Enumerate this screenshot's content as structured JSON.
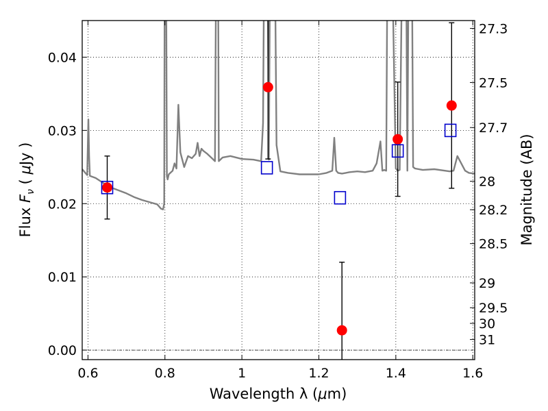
{
  "chart_data": {
    "type": "scatter",
    "xlabel": "Wavelength  λ (μm)",
    "ylabel_left": "Flux  Fν  ( μJy )",
    "ylabel_right": "Magnitude (AB)",
    "xlim": [
      0.585,
      1.605
    ],
    "ylim": [
      -0.0013,
      0.045
    ],
    "x_ticks": [
      0.6,
      0.8,
      1.0,
      1.2,
      1.4,
      1.6
    ],
    "x_tick_labels": [
      "0.6",
      "0.8",
      "1",
      "1.2",
      "1.4",
      "1.6"
    ],
    "y_ticks": [
      0.0,
      0.01,
      0.02,
      0.03,
      0.04
    ],
    "y_tick_labels": [
      "0.00",
      "0.01",
      "0.02",
      "0.03",
      "0.04"
    ],
    "right_ticks": [
      {
        "label": "27.3",
        "flux": 0.04393
      },
      {
        "label": "27.5",
        "flux": 0.03654
      },
      {
        "label": "27.7",
        "flux": 0.03039
      },
      {
        "label": "28",
        "flux": 0.02305
      },
      {
        "label": "28.2",
        "flux": 0.01917
      },
      {
        "label": "28.5",
        "flux": 0.01454
      },
      {
        "label": "29",
        "flux": 0.00918
      },
      {
        "label": "29.5",
        "flux": 0.00579
      },
      {
        "label": "30",
        "flux": 0.00365
      },
      {
        "label": "31",
        "flux": 0.00145
      }
    ],
    "grid": true,
    "series": [
      {
        "kind": "line",
        "color": "#808080",
        "x": [
          0.585,
          0.598,
          0.601,
          0.603,
          0.605,
          0.62,
          0.64,
          0.66,
          0.68,
          0.7,
          0.72,
          0.74,
          0.76,
          0.78,
          0.79,
          0.795,
          0.798,
          0.8,
          0.801,
          0.802,
          0.805,
          0.807,
          0.81,
          0.82,
          0.825,
          0.83,
          0.835,
          0.84,
          0.85,
          0.86,
          0.87,
          0.88,
          0.885,
          0.89,
          0.895,
          0.9,
          0.91,
          0.92,
          0.93,
          0.935,
          0.937,
          0.94,
          0.95,
          0.97,
          1.0,
          1.03,
          1.05,
          1.055,
          1.06,
          1.065,
          1.07,
          1.075,
          1.08,
          1.083,
          1.09,
          1.1,
          1.12,
          1.15,
          1.18,
          1.2,
          1.22,
          1.235,
          1.24,
          1.245,
          1.25,
          1.26,
          1.27,
          1.28,
          1.3,
          1.32,
          1.34,
          1.35,
          1.36,
          1.365,
          1.37,
          1.375,
          1.38,
          1.385,
          1.4,
          1.405,
          1.41,
          1.42,
          1.425,
          1.43,
          1.435,
          1.44,
          1.445,
          1.45,
          1.47,
          1.5,
          1.54,
          1.55,
          1.56,
          1.58,
          1.59,
          1.605
        ],
        "y": [
          0.0247,
          0.0239,
          0.0315,
          0.0265,
          0.0238,
          0.0235,
          0.0228,
          0.0222,
          0.0218,
          0.0214,
          0.0209,
          0.0205,
          0.0202,
          0.0199,
          0.0193,
          0.0192,
          0.02,
          0.07,
          0.07,
          0.07,
          0.0238,
          0.0233,
          0.024,
          0.0245,
          0.0255,
          0.0248,
          0.0335,
          0.027,
          0.025,
          0.0265,
          0.0262,
          0.0268,
          0.0283,
          0.0265,
          0.0275,
          0.0272,
          0.0268,
          0.0263,
          0.0258,
          0.07,
          0.07,
          0.0258,
          0.0263,
          0.0265,
          0.0261,
          0.026,
          0.0258,
          0.031,
          0.07,
          0.07,
          0.026,
          0.07,
          0.07,
          0.07,
          0.028,
          0.0244,
          0.0242,
          0.024,
          0.024,
          0.024,
          0.0242,
          0.0245,
          0.029,
          0.0245,
          0.0242,
          0.0241,
          0.0242,
          0.0243,
          0.0244,
          0.0243,
          0.0245,
          0.0255,
          0.0285,
          0.0245,
          0.0246,
          0.0245,
          0.07,
          0.07,
          0.0248,
          0.0245,
          0.0246,
          0.07,
          0.07,
          0.0245,
          0.07,
          0.07,
          0.025,
          0.0248,
          0.0246,
          0.0247,
          0.0244,
          0.0245,
          0.0265,
          0.0245,
          0.0242,
          0.0241
        ]
      },
      {
        "kind": "points",
        "marker": "circle",
        "color": "#ff0000",
        "points": [
          {
            "x": 0.65,
            "y": 0.0222,
            "err": 0.0043
          },
          {
            "x": 1.068,
            "y": 0.0359,
            "err": 0.0098
          },
          {
            "x": 1.26,
            "y": 0.0027,
            "err": 0.0093
          },
          {
            "x": 1.405,
            "y": 0.0288,
            "err": 0.0078
          },
          {
            "x": 1.545,
            "y": 0.0334,
            "err": 0.0113
          }
        ]
      },
      {
        "kind": "points",
        "marker": "square",
        "color": "#0000cc",
        "points": [
          {
            "x": 0.65,
            "y": 0.0222
          },
          {
            "x": 1.065,
            "y": 0.0249
          },
          {
            "x": 1.255,
            "y": 0.0208
          },
          {
            "x": 1.405,
            "y": 0.0272
          },
          {
            "x": 1.542,
            "y": 0.03
          }
        ]
      }
    ]
  }
}
